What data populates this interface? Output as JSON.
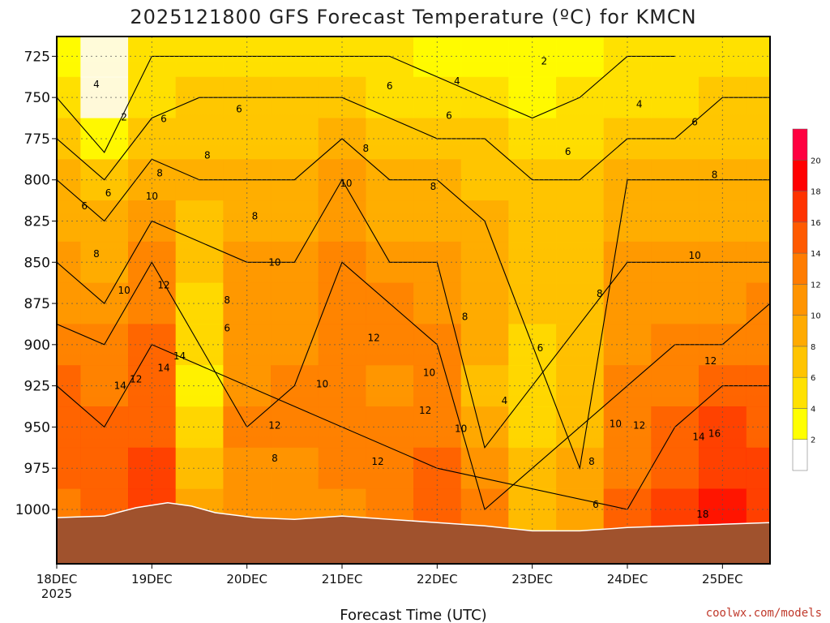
{
  "title": "2025121800 GFS Forecast Temperature (ºC) for KMCN",
  "credit": "coolwx.com/models",
  "chart_data": {
    "type": "heatmap",
    "title": "2025121800 GFS Forecast Temperature (ºC) for KMCN",
    "xlabel": "Forecast Time (UTC)",
    "ylabel": "",
    "x_ticks": [
      {
        "label": "18DEC",
        "sub": "2025",
        "hour": 0
      },
      {
        "label": "19DEC",
        "sub": "",
        "hour": 24
      },
      {
        "label": "20DEC",
        "sub": "",
        "hour": 48
      },
      {
        "label": "21DEC",
        "sub": "",
        "hour": 72
      },
      {
        "label": "22DEC",
        "sub": "",
        "hour": 96
      },
      {
        "label": "23DEC",
        "sub": "",
        "hour": 120
      },
      {
        "label": "24DEC",
        "sub": "",
        "hour": 144
      },
      {
        "label": "25DEC",
        "sub": "",
        "hour": 168
      }
    ],
    "xlim_hours": [
      0,
      180
    ],
    "y_axis": {
      "label": "",
      "ticks": [
        725,
        750,
        775,
        800,
        825,
        850,
        875,
        900,
        925,
        950,
        975,
        1000
      ],
      "range_hpa": [
        713,
        1033
      ],
      "inverted": true
    },
    "grid": true,
    "colorbar": {
      "levels": [
        2,
        4,
        6,
        8,
        10,
        12,
        14,
        16,
        18,
        20
      ],
      "colors": [
        "#ffffff",
        "#ffff00",
        "#ffe100",
        "#ffc400",
        "#ffaa00",
        "#ff9400",
        "#ff7c00",
        "#ff5a00",
        "#ff3300",
        "#ff0000",
        "#ff0040"
      ],
      "position": "right"
    },
    "series": [
      {
        "hour": 0,
        "temps": [
          3,
          4,
          6,
          8,
          9,
          10,
          11,
          13,
          14,
          15,
          14,
          13
        ]
      },
      {
        "hour": 12,
        "temps": [
          1,
          1,
          3,
          6,
          8,
          9,
          10,
          12,
          13,
          14,
          15,
          15
        ]
      },
      {
        "hour": 24,
        "temps": [
          4,
          5,
          7,
          9,
          10,
          12,
          13,
          14,
          15,
          15,
          16,
          16
        ]
      },
      {
        "hour": 36,
        "temps": [
          4,
          6,
          7,
          8,
          7,
          6,
          5,
          4,
          3,
          5,
          7,
          9
        ]
      },
      {
        "hour": 48,
        "temps": [
          4,
          6,
          7,
          8,
          9,
          10,
          10,
          11,
          11,
          12,
          11,
          10
        ]
      },
      {
        "hour": 60,
        "temps": [
          4,
          6,
          7,
          8,
          9,
          10,
          11,
          11,
          12,
          12,
          11,
          10
        ]
      },
      {
        "hour": 72,
        "temps": [
          4,
          6,
          8,
          10,
          11,
          12,
          13,
          13,
          13,
          12,
          12,
          11
        ]
      },
      {
        "hour": 84,
        "temps": [
          4,
          5,
          7,
          8,
          8,
          10,
          12,
          12,
          11,
          12,
          13,
          12
        ]
      },
      {
        "hour": 96,
        "temps": [
          3,
          5,
          6,
          8,
          9,
          10,
          11,
          12,
          12,
          13,
          14,
          15
        ]
      },
      {
        "hour": 108,
        "temps": [
          2,
          4,
          6,
          7,
          8,
          9,
          9,
          8,
          7,
          9,
          11,
          12
        ]
      },
      {
        "hour": 120,
        "temps": [
          2,
          3,
          5,
          6,
          7,
          7,
          6,
          5,
          4,
          5,
          6,
          6
        ]
      },
      {
        "hour": 132,
        "temps": [
          3,
          4,
          5,
          6,
          7,
          7,
          7,
          6,
          6,
          7,
          8,
          8
        ]
      },
      {
        "hour": 144,
        "temps": [
          4,
          4,
          6,
          8,
          9,
          10,
          10,
          11,
          12,
          13,
          13,
          14
        ]
      },
      {
        "hour": 156,
        "temps": [
          4,
          5,
          6,
          8,
          9,
          10,
          11,
          12,
          13,
          14,
          15,
          16
        ]
      },
      {
        "hour": 168,
        "temps": [
          5,
          6,
          7,
          8,
          9,
          10,
          11,
          12,
          14,
          16,
          17,
          18
        ]
      },
      {
        "hour": 180,
        "temps": [
          5,
          6,
          7,
          8,
          9,
          10,
          12,
          13,
          14,
          15,
          16,
          16
        ]
      }
    ],
    "contour_labels": [
      {
        "text": "2",
        "hour": 123,
        "hpa": 728
      },
      {
        "text": "2",
        "hour": 17,
        "hpa": 762
      },
      {
        "text": "4",
        "hour": 10,
        "hpa": 742
      },
      {
        "text": "4",
        "hour": 101,
        "hpa": 740
      },
      {
        "text": "4",
        "hour": 147,
        "hpa": 754
      },
      {
        "text": "4",
        "hour": 113,
        "hpa": 934
      },
      {
        "text": "6",
        "hour": 7,
        "hpa": 816
      },
      {
        "text": "6",
        "hour": 13,
        "hpa": 808
      },
      {
        "text": "6",
        "hour": 27,
        "hpa": 763
      },
      {
        "text": "6",
        "hour": 46,
        "hpa": 757
      },
      {
        "text": "6",
        "hour": 84,
        "hpa": 743
      },
      {
        "text": "6",
        "hour": 99,
        "hpa": 761
      },
      {
        "text": "6",
        "hour": 129,
        "hpa": 783
      },
      {
        "text": "6",
        "hour": 161,
        "hpa": 765
      },
      {
        "text": "6",
        "hour": 43,
        "hpa": 890
      },
      {
        "text": "6",
        "hour": 122,
        "hpa": 902
      },
      {
        "text": "6",
        "hour": 136,
        "hpa": 997
      },
      {
        "text": "8",
        "hour": 26,
        "hpa": 796
      },
      {
        "text": "8",
        "hour": 38,
        "hpa": 785
      },
      {
        "text": "8",
        "hour": 50,
        "hpa": 822
      },
      {
        "text": "8",
        "hour": 78,
        "hpa": 781
      },
      {
        "text": "8",
        "hour": 95,
        "hpa": 804
      },
      {
        "text": "8",
        "hour": 10,
        "hpa": 845
      },
      {
        "text": "8",
        "hour": 43,
        "hpa": 873
      },
      {
        "text": "8",
        "hour": 103,
        "hpa": 883
      },
      {
        "text": "8",
        "hour": 137,
        "hpa": 869
      },
      {
        "text": "8",
        "hour": 166,
        "hpa": 797
      },
      {
        "text": "8",
        "hour": 55,
        "hpa": 969
      },
      {
        "text": "8",
        "hour": 135,
        "hpa": 971
      },
      {
        "text": "10",
        "hour": 24,
        "hpa": 810
      },
      {
        "text": "10",
        "hour": 73,
        "hpa": 802
      },
      {
        "text": "10",
        "hour": 55,
        "hpa": 850
      },
      {
        "text": "10",
        "hour": 17,
        "hpa": 867
      },
      {
        "text": "10",
        "hour": 161,
        "hpa": 846
      },
      {
        "text": "10",
        "hour": 67,
        "hpa": 924
      },
      {
        "text": "10",
        "hour": 94,
        "hpa": 917
      },
      {
        "text": "10",
        "hour": 102,
        "hpa": 951
      },
      {
        "text": "10",
        "hour": 141,
        "hpa": 948
      },
      {
        "text": "12",
        "hour": 27,
        "hpa": 864
      },
      {
        "text": "12",
        "hour": 80,
        "hpa": 896
      },
      {
        "text": "12",
        "hour": 20,
        "hpa": 921
      },
      {
        "text": "12",
        "hour": 55,
        "hpa": 949
      },
      {
        "text": "12",
        "hour": 93,
        "hpa": 940
      },
      {
        "text": "12",
        "hour": 81,
        "hpa": 971
      },
      {
        "text": "12",
        "hour": 147,
        "hpa": 949
      },
      {
        "text": "12",
        "hour": 165,
        "hpa": 910
      },
      {
        "text": "14",
        "hour": 16,
        "hpa": 925
      },
      {
        "text": "14",
        "hour": 27,
        "hpa": 914
      },
      {
        "text": "14",
        "hour": 31,
        "hpa": 907
      },
      {
        "text": "14",
        "hour": 162,
        "hpa": 956
      },
      {
        "text": "16",
        "hour": 166,
        "hpa": 954
      },
      {
        "text": "18",
        "hour": 163,
        "hpa": 1003
      }
    ]
  }
}
